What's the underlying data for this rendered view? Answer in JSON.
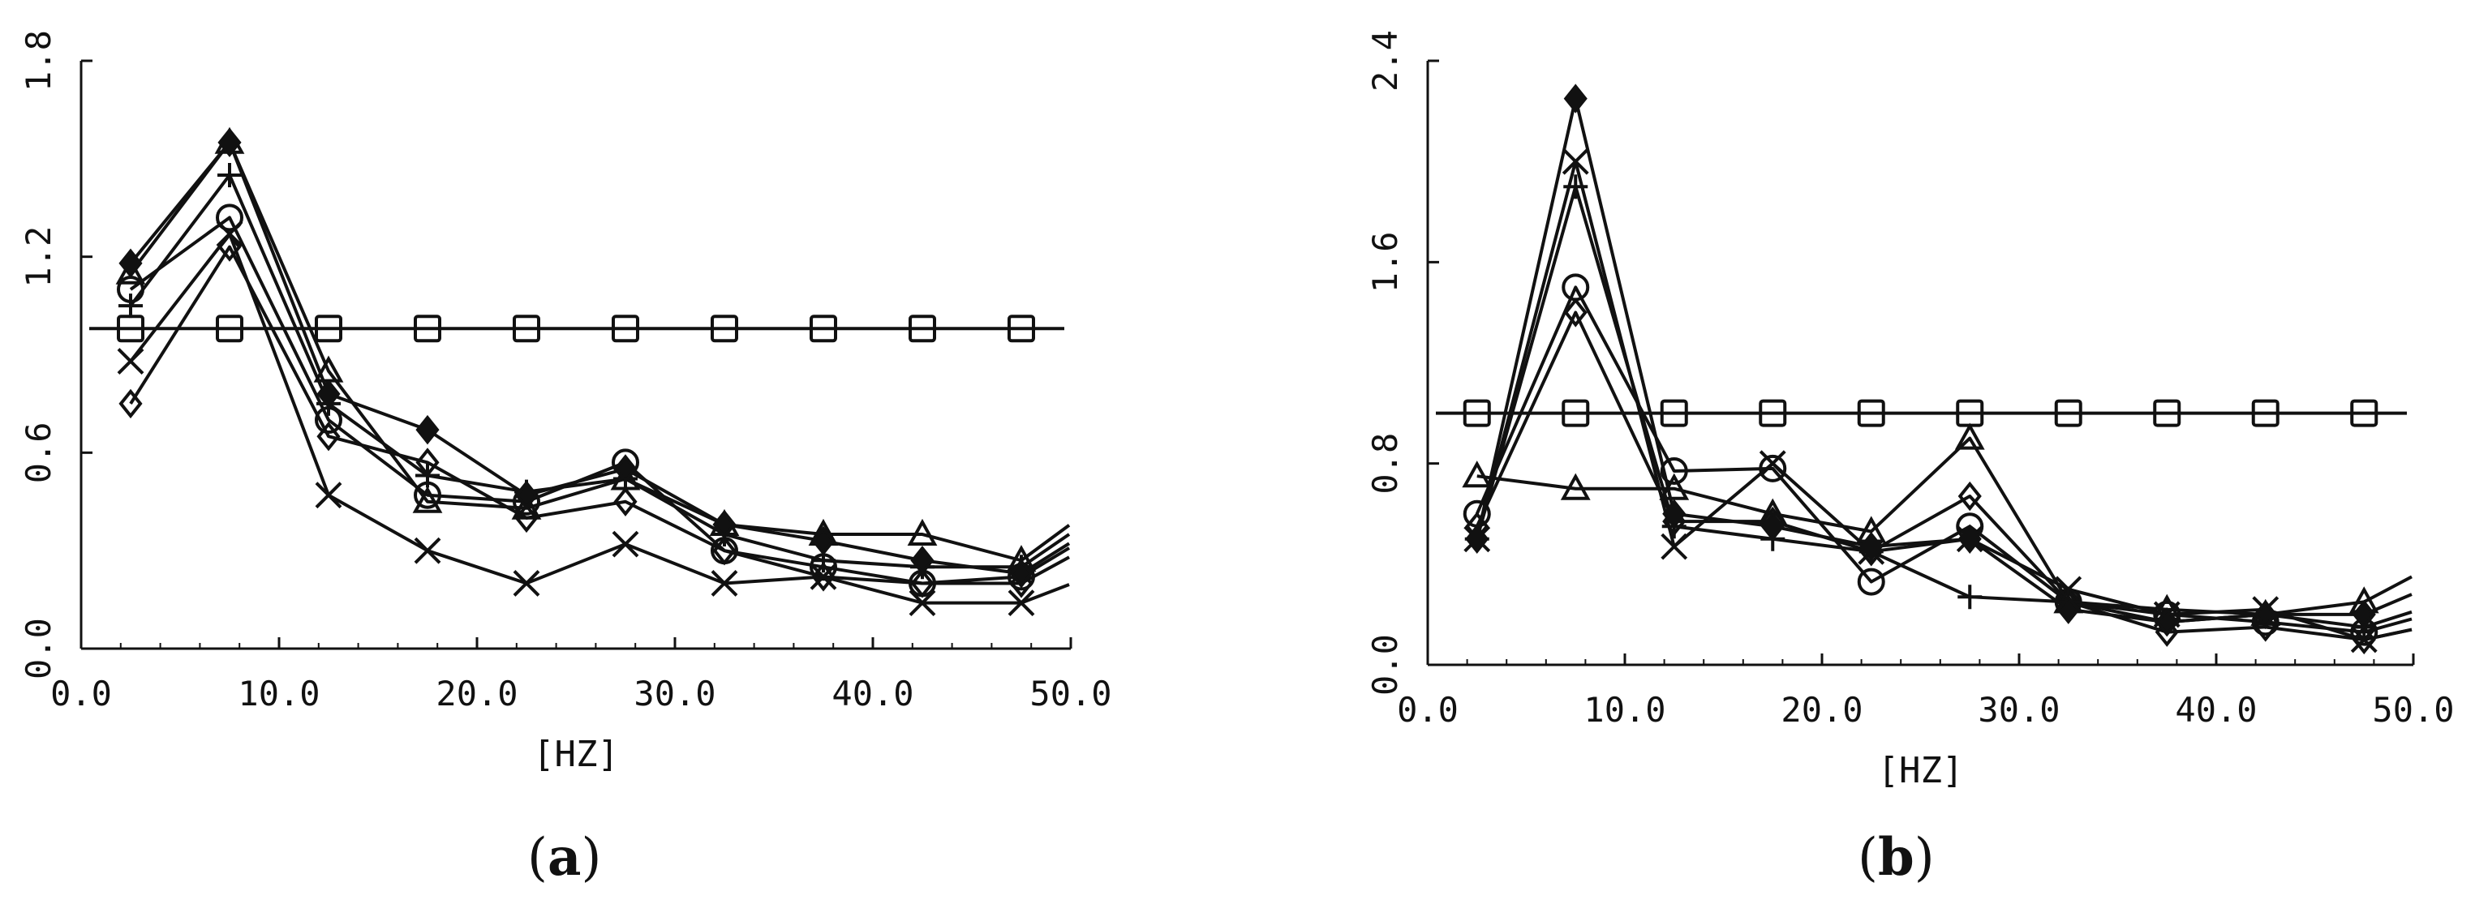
{
  "chart_data": [
    {
      "panel": "a",
      "type": "line",
      "xlabel": "[HZ]",
      "ylabel": "",
      "xlim": [
        0,
        50
      ],
      "ylim": [
        0,
        1.8
      ],
      "xticks": [
        0,
        10,
        20,
        30,
        40,
        50
      ],
      "xtick_labels": [
        "0.0",
        "10.0",
        "20.0",
        "30.0",
        "40.0",
        "50.0"
      ],
      "yticks": [
        0,
        0.6,
        1.2,
        1.8
      ],
      "ytick_labels": [
        "0.0",
        "0.6",
        "1.2",
        "1.8"
      ],
      "grid": false,
      "x": [
        2.5,
        7.5,
        12.5,
        17.5,
        22.5,
        27.5,
        32.5,
        37.5,
        42.5,
        47.5
      ],
      "series": [
        {
          "marker": "square",
          "values": [
            0.98,
            0.98,
            0.98,
            0.98,
            0.98,
            0.98,
            0.98,
            0.98,
            0.98,
            0.98
          ]
        },
        {
          "marker": "x",
          "values": [
            0.88,
            1.27,
            0.47,
            0.3,
            0.2,
            0.32,
            0.2,
            0.22,
            0.14,
            0.14
          ]
        },
        {
          "marker": "diamond",
          "values": [
            0.75,
            1.23,
            0.65,
            0.57,
            0.4,
            0.45,
            0.3,
            0.22,
            0.2,
            0.2
          ]
        },
        {
          "marker": "circle",
          "values": [
            1.1,
            1.32,
            0.7,
            0.47,
            0.45,
            0.57,
            0.3,
            0.25,
            0.2,
            0.22
          ]
        },
        {
          "marker": "triangle",
          "values": [
            1.15,
            1.55,
            0.85,
            0.45,
            0.43,
            0.52,
            0.38,
            0.35,
            0.35,
            0.27
          ]
        },
        {
          "marker": "plus",
          "values": [
            1.05,
            1.45,
            0.75,
            0.53,
            0.48,
            0.52,
            0.35,
            0.27,
            0.25,
            0.25
          ]
        },
        {
          "marker": "diamond-filled",
          "values": [
            1.18,
            1.55,
            0.78,
            0.67,
            0.47,
            0.55,
            0.38,
            0.33,
            0.27,
            0.23
          ]
        }
      ]
    },
    {
      "panel": "b",
      "type": "line",
      "xlabel": "[HZ]",
      "ylabel": "",
      "xlim": [
        0,
        50
      ],
      "ylim": [
        0,
        2.4
      ],
      "xticks": [
        0,
        10,
        20,
        30,
        40,
        50
      ],
      "xtick_labels": [
        "0.0",
        "10.0",
        "20.0",
        "30.0",
        "40.0",
        "50.0"
      ],
      "yticks": [
        0,
        0.8,
        1.6,
        2.4
      ],
      "ytick_labels": [
        "0.0",
        "0.8",
        "1.6",
        "2.4"
      ],
      "grid": false,
      "x": [
        2.5,
        7.5,
        12.5,
        17.5,
        22.5,
        27.5,
        32.5,
        37.5,
        42.5,
        47.5
      ],
      "series": [
        {
          "marker": "square",
          "values": [
            1.0,
            1.0,
            1.0,
            1.0,
            1.0,
            1.0,
            1.0,
            1.0,
            1.0,
            1.0
          ]
        },
        {
          "marker": "x",
          "values": [
            0.5,
            2.0,
            0.47,
            0.8,
            0.45,
            0.5,
            0.3,
            0.2,
            0.22,
            0.1
          ]
        },
        {
          "marker": "diamond",
          "values": [
            0.55,
            1.4,
            0.57,
            0.57,
            0.45,
            0.67,
            0.25,
            0.13,
            0.15,
            0.1
          ]
        },
        {
          "marker": "circle",
          "values": [
            0.6,
            1.5,
            0.77,
            0.78,
            0.33,
            0.55,
            0.25,
            0.2,
            0.17,
            0.13
          ]
        },
        {
          "marker": "triangle",
          "values": [
            0.75,
            0.7,
            0.7,
            0.6,
            0.53,
            0.9,
            0.25,
            0.22,
            0.2,
            0.25
          ]
        },
        {
          "marker": "plus",
          "values": [
            0.5,
            1.9,
            0.55,
            0.5,
            0.45,
            0.27,
            0.25,
            0.17,
            0.2,
            0.15
          ]
        },
        {
          "marker": "diamond-filled",
          "values": [
            0.5,
            2.25,
            0.6,
            0.55,
            0.47,
            0.5,
            0.22,
            0.17,
            0.2,
            0.2
          ]
        }
      ]
    }
  ],
  "captions": {
    "a": {
      "open": "(",
      "letter": "a",
      "close": ")"
    },
    "b": {
      "open": "(",
      "letter": "b",
      "close": ")"
    }
  }
}
